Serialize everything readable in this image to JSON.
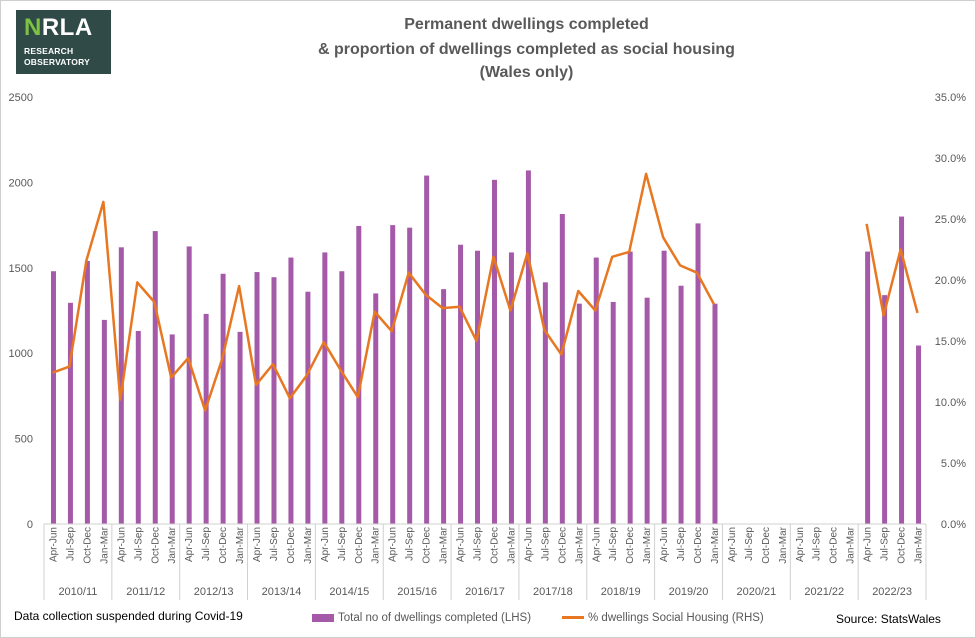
{
  "logo": {
    "mark_first": "N",
    "mark_rest": "RLA",
    "line1": "RESEARCH",
    "line2": "OBSERVATORY"
  },
  "title": {
    "line1": "Permanent dwellings completed",
    "line2": "& proportion of dwellings completed as social housing",
    "line3": "(Wales only)"
  },
  "chart_data": {
    "type": "bar",
    "secondary_type": "line",
    "categories": [
      "Apr-Jun",
      "Jul-Sep",
      "Oct-Dec",
      "Jan-Mar",
      "Apr-Jun",
      "Jul-Sep",
      "Oct-Dec",
      "Jan-Mar",
      "Apr-Jun",
      "Jul-Sep",
      "Oct-Dec",
      "Jan-Mar",
      "Apr-Jun",
      "Jul-Sep",
      "Oct-Dec",
      "Jan-Mar",
      "Apr-Jun",
      "Jul-Sep",
      "Oct-Dec",
      "Jan-Mar",
      "Apr-Jun",
      "Jul-Sep",
      "Oct-Dec",
      "Jan-Mar",
      "Apr-Jun",
      "Jul-Sep",
      "Oct-Dec",
      "Jan-Mar",
      "Apr-Jun",
      "Jul-Sep",
      "Oct-Dec",
      "Jan-Mar",
      "Apr-Jun",
      "Jul-Sep",
      "Oct-Dec",
      "Jan-Mar",
      "Apr-Jun",
      "Jul-Sep",
      "Oct-Dec",
      "Jan-Mar",
      "Apr-Jun",
      "Jul-Sep",
      "Oct-Dec",
      "Jan-Mar",
      "Apr-Jun",
      "Jul-Sep",
      "Oct-Dec",
      "Jan-Mar",
      "Apr-Jun",
      "Jul-Sep",
      "Oct-Dec",
      "Jan-Mar"
    ],
    "groups": [
      "2010/11",
      "2011/12",
      "2012/13",
      "2013/14",
      "2014/15",
      "2015/16",
      "2016/17",
      "2017/18",
      "2018/19",
      "2019/20",
      "2020/21",
      "2021/22",
      "2022/23"
    ],
    "series": [
      {
        "name": "Total no of dwellings completed (LHS)",
        "axis": "left",
        "color": "#a45aa8",
        "values": [
          1480,
          1295,
          1540,
          1195,
          1620,
          1130,
          1715,
          1110,
          1625,
          1230,
          1465,
          1125,
          1475,
          1445,
          1560,
          1360,
          1590,
          1480,
          1745,
          1350,
          1750,
          1735,
          2040,
          1375,
          1635,
          1600,
          2015,
          1590,
          2070,
          1415,
          1815,
          1290,
          1560,
          1300,
          1595,
          1325,
          1600,
          1395,
          1760,
          1290,
          null,
          null,
          null,
          null,
          null,
          null,
          null,
          null,
          1595,
          1340,
          1800,
          1045
        ]
      },
      {
        "name": "% dwellings Social Housing (RHS)",
        "axis": "right",
        "color": "#e87722",
        "values": [
          12.4,
          12.9,
          21.6,
          26.4,
          10.2,
          19.8,
          18.2,
          12.0,
          13.6,
          9.3,
          13.5,
          19.5,
          11.4,
          13.1,
          10.3,
          12.2,
          14.9,
          12.6,
          10.4,
          17.4,
          15.8,
          20.6,
          18.8,
          17.7,
          17.8,
          15.0,
          21.9,
          17.5,
          22.2,
          15.9,
          13.9,
          19.1,
          17.5,
          21.9,
          22.3,
          28.7,
          23.5,
          21.2,
          20.6,
          18.0,
          null,
          null,
          null,
          null,
          null,
          null,
          null,
          null,
          24.6,
          17.1,
          22.5,
          17.3
        ]
      }
    ],
    "y_left": {
      "min": 0,
      "max": 2500,
      "ticks": [
        "0",
        "500",
        "1000",
        "1500",
        "2000",
        "2500"
      ]
    },
    "y_right": {
      "min": 0,
      "max": 35,
      "ticks": [
        "0.0%",
        "5.0%",
        "10.0%",
        "15.0%",
        "20.0%",
        "25.0%",
        "30.0%",
        "35.0%"
      ]
    },
    "legend": [
      "Total no of dwellings completed (LHS)",
      "% dwellings Social Housing (RHS)"
    ],
    "legend_position": "bottom"
  },
  "footer": {
    "note": "Data collection  suspended during Covid-19",
    "source": "Source:  StatsWales"
  },
  "colors": {
    "bar": "#a45aa8",
    "line": "#e87722",
    "text": "#595959"
  }
}
